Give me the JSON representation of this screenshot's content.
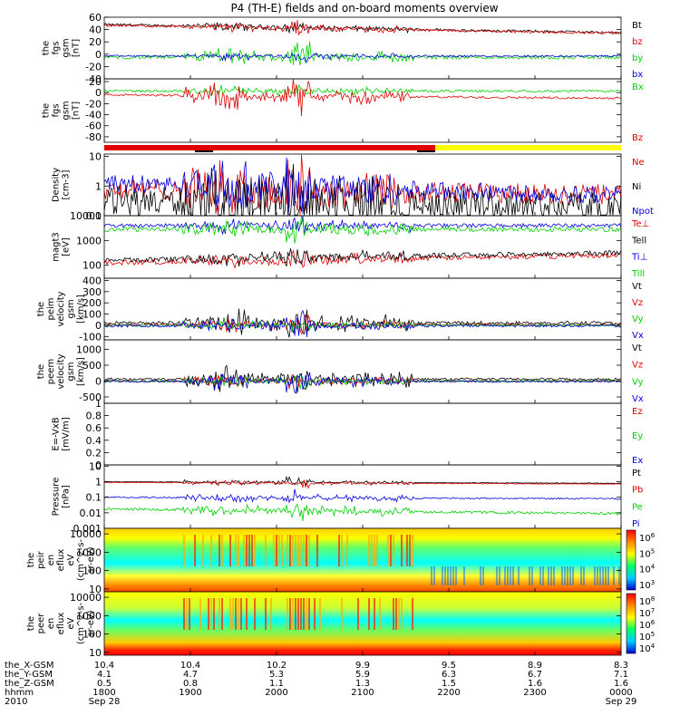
{
  "title": "P4 (TH-E) fields and on-board moments overview",
  "colors": {
    "black": "#000000",
    "red": "#e00000",
    "green": "#00d000",
    "blue": "#0000e0",
    "yellow": "#ffff00"
  },
  "chart_data": [
    {
      "type": "line",
      "id": "fgs_gsm",
      "ylabel": [
        "the",
        "fgs",
        "gsm",
        "[nT]"
      ],
      "ylim": [
        -40,
        60
      ],
      "yticks": [
        60,
        40,
        20,
        0,
        -20,
        -40
      ],
      "series": [
        {
          "name": "Bt",
          "color": "#000000",
          "base": 48,
          "trend": -13,
          "noise": 2,
          "burst": 8
        },
        {
          "name": "bz",
          "color": "#e00000",
          "base": 47,
          "trend": -13,
          "noise": 2,
          "burst": 10
        },
        {
          "name": "by",
          "color": "#00d000",
          "base": -5,
          "trend": 0,
          "noise": 3,
          "burst": 22
        },
        {
          "name": "bx",
          "color": "#0000e0",
          "base": -3,
          "trend": 0,
          "noise": 1.5,
          "burst": 8
        }
      ]
    },
    {
      "type": "line",
      "id": "fgs_gsm_dc",
      "ylabel": [
        "the",
        "fgs",
        "gsm",
        "[nT]"
      ],
      "ylim": [
        -90,
        25
      ],
      "yticks": [
        20,
        0,
        -20,
        -40,
        -60,
        -80
      ],
      "series": [
        {
          "name": "Bx",
          "color": "#00d000",
          "base": 3,
          "trend": 0,
          "noise": 2,
          "burst": 15
        },
        {
          "name": "Bz",
          "color": "#e00000",
          "base": -4,
          "trend": -6,
          "noise": 2,
          "burst": 40
        }
      ]
    },
    {
      "type": "line",
      "id": "density",
      "ylabel": [
        "Density",
        "[cm-3]"
      ],
      "ylog": true,
      "ylim": [
        0.1,
        12
      ],
      "yticks": [
        10.0,
        1.0,
        0.1
      ],
      "series": [
        {
          "name": "Ne",
          "color": "#e00000",
          "base": -0.1,
          "trend": -0.2,
          "noise": 0.35,
          "burst": 0.6
        },
        {
          "name": "Ni",
          "color": "#000000",
          "base": -0.5,
          "trend": -0.2,
          "noise": 0.5,
          "burst": 0.7
        },
        {
          "name": "Npot",
          "color": "#0000e0",
          "base": 0.1,
          "trend": -0.4,
          "noise": 0.3,
          "burst": 0.5
        }
      ]
    },
    {
      "type": "line",
      "id": "temperature",
      "ylabel": [
        "magt3",
        "[eV]"
      ],
      "ylog": true,
      "ylim": [
        30,
        10000
      ],
      "yticks": [
        10000,
        1000,
        100
      ],
      "series": [
        {
          "name": "Te⊥",
          "color": "#e00000",
          "base": 2.1,
          "trend": 0.3,
          "noise": 0.1,
          "burst": 0.3
        },
        {
          "name": "Tell",
          "color": "#000000",
          "base": 2.2,
          "trend": 0.3,
          "noise": 0.1,
          "burst": 0.3
        },
        {
          "name": "Ti⊥",
          "color": "#0000e0",
          "base": 3.6,
          "trend": 0,
          "noise": 0.08,
          "burst": 0.4
        },
        {
          "name": "Till",
          "color": "#00d000",
          "base": 3.45,
          "trend": 0,
          "noise": 0.1,
          "burst": 0.4
        }
      ]
    },
    {
      "type": "line",
      "id": "peim_velocity",
      "ylabel": [
        "the",
        "peim",
        "velocity",
        "gsm",
        "[km/s]"
      ],
      "ylim": [
        -130,
        420
      ],
      "yticks": [
        400,
        300,
        200,
        100,
        0,
        -100
      ],
      "series": [
        {
          "name": "Vt",
          "color": "#000000",
          "base": 20,
          "trend": 0,
          "noise": 15,
          "burst": 180
        },
        {
          "name": "Vz",
          "color": "#e00000",
          "base": 5,
          "trend": 0,
          "noise": 10,
          "burst": 80
        },
        {
          "name": "Vy",
          "color": "#00d000",
          "base": 0,
          "trend": 0,
          "noise": 10,
          "burst": 60
        },
        {
          "name": "Vx",
          "color": "#0000e0",
          "base": -5,
          "trend": 0,
          "noise": 12,
          "burst": 100
        }
      ]
    },
    {
      "type": "line",
      "id": "peem_velocity",
      "ylabel": [
        "the",
        "peem",
        "velocity",
        "gsm",
        "[km/s]"
      ],
      "ylim": [
        -700,
        1300
      ],
      "yticks": [
        1000,
        500,
        0,
        -500
      ],
      "series": [
        {
          "name": "Vt",
          "color": "#000000",
          "base": 60,
          "trend": 0,
          "noise": 40,
          "burst": 650
        },
        {
          "name": "Vz",
          "color": "#e00000",
          "base": 0,
          "trend": 0,
          "noise": 30,
          "burst": 300
        },
        {
          "name": "Vy",
          "color": "#00d000",
          "base": 0,
          "trend": 0,
          "noise": 30,
          "burst": 250
        },
        {
          "name": "Vx",
          "color": "#0000e0",
          "base": -10,
          "trend": 0,
          "noise": 30,
          "burst": 400
        }
      ]
    },
    {
      "type": "line",
      "id": "efield",
      "ylabel": [
        "E=-VxB",
        "[mV/m]"
      ],
      "ylim": [
        0,
        1
      ],
      "yticks": [
        1.0,
        0.8,
        0.6,
        0.4,
        0.2,
        0.0
      ],
      "series": [
        {
          "name": "Ez",
          "color": "#e00000"
        },
        {
          "name": "Ey",
          "color": "#00d000"
        },
        {
          "name": "Ex",
          "color": "#0000e0"
        }
      ]
    },
    {
      "type": "line",
      "id": "pressure",
      "ylabel": [
        "Pressure",
        "[nPa]"
      ],
      "ylog": true,
      "ylim": [
        0.001,
        12
      ],
      "yticks": [
        10.0,
        1.0,
        0.1,
        0.01,
        0.001
      ],
      "series": [
        {
          "name": "Pt",
          "color": "#000000",
          "base": 0,
          "trend": -0.1,
          "noise": 0.02,
          "burst": 0.3
        },
        {
          "name": "Pb",
          "color": "#e00000",
          "base": -0.05,
          "trend": -0.1,
          "noise": 0.02,
          "burst": 0.3
        },
        {
          "name": "Pe",
          "color": "#00d000",
          "base": -1.75,
          "trend": -0.3,
          "noise": 0.08,
          "burst": 0.6
        },
        {
          "name": "Pi",
          "color": "#0000e0",
          "base": -1.0,
          "trend": -0.1,
          "noise": 0.05,
          "burst": 0.5
        }
      ]
    },
    {
      "type": "heatmap",
      "id": "peir_eflux",
      "ylabel": [
        "the",
        "peir",
        "en",
        "eflux",
        "eV",
        "(cm^2-s-",
        "sr-eV)"
      ],
      "ylog": true,
      "ylim": [
        7,
        20000
      ],
      "yticks": [
        10000,
        1000,
        100,
        10
      ],
      "colorbar": {
        "labels": [
          "10^6",
          "10^5",
          "10^4",
          "10^3"
        ]
      }
    },
    {
      "type": "heatmap",
      "id": "peer_eflux",
      "ylabel": [
        "the",
        "peer",
        "en",
        "eflux",
        "eV",
        "(cm^2-s-",
        "sr-eV)"
      ],
      "ylog": true,
      "ylim": [
        7,
        20000
      ],
      "yticks": [
        10000,
        1000,
        100,
        10
      ],
      "colorbar": {
        "labels": [
          "10^8",
          "10^7",
          "10^6",
          "10^5",
          "10^4"
        ]
      }
    }
  ],
  "x_axis": {
    "row_labels": [
      "the_X-GSM",
      "the_Y-GSM",
      "the_Z-GSM",
      "hhmm",
      "2010"
    ],
    "ticks": [
      {
        "t": 0,
        "X": "10.4",
        "Y": "4.1",
        "Z": "0.5",
        "hhmm": "1800",
        "date": "Sep 28"
      },
      {
        "t": 1,
        "X": "10.4",
        "Y": "4.7",
        "Z": "0.8",
        "hhmm": "1900",
        "date": ""
      },
      {
        "t": 2,
        "X": "10.2",
        "Y": "5.3",
        "Z": "1.1",
        "hhmm": "2000",
        "date": ""
      },
      {
        "t": 3,
        "X": "9.9",
        "Y": "5.9",
        "Z": "1.3",
        "hhmm": "2100",
        "date": ""
      },
      {
        "t": 4,
        "X": "9.5",
        "Y": "6.3",
        "Z": "1.5",
        "hhmm": "2200",
        "date": ""
      },
      {
        "t": 5,
        "X": "8.9",
        "Y": "6.7",
        "Z": "1.6",
        "hhmm": "2300",
        "date": ""
      },
      {
        "t": 6,
        "X": "8.3",
        "Y": "7.1",
        "Z": "1.6",
        "hhmm": "0000",
        "date": "Sep 29"
      }
    ]
  }
}
